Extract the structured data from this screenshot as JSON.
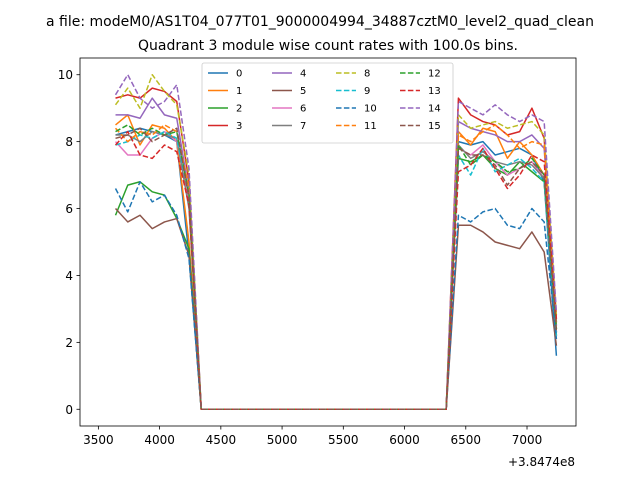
{
  "figure": {
    "suptitle": "a file: modeM0/AS1T04_077T01_9000004994_34887cztM0_level2_quad_clean",
    "title": "Quadrant 3 module wise count rates with 100.0s bins.",
    "offset_text": "+3.8474e8"
  },
  "chart_data": {
    "type": "line",
    "title": "Quadrant 3 module wise count rates with 100.0s bins.",
    "xlabel": "",
    "ylabel": "",
    "x_offset": 384740000,
    "xlim": [
      3350,
      7400
    ],
    "ylim": [
      -0.5,
      10.5
    ],
    "xticks": [
      3500,
      4000,
      4500,
      5000,
      5500,
      6000,
      6500,
      7000
    ],
    "yticks": [
      0,
      2,
      4,
      6,
      8,
      10
    ],
    "grid": false,
    "legend_placement": "upper-center",
    "legend_columns": 4,
    "x": [
      3640,
      3740,
      3840,
      3940,
      4040,
      4140,
      4240,
      4340,
      4440,
      4540,
      4640,
      4740,
      4840,
      4940,
      5040,
      5140,
      5240,
      5340,
      5440,
      5540,
      5640,
      5740,
      5840,
      5940,
      6040,
      6140,
      6240,
      6340,
      6440,
      6540,
      6640,
      6740,
      6840,
      6940,
      7040,
      7140,
      7240
    ],
    "series": [
      {
        "name": "0",
        "color": "#1f77b4",
        "dash": "solid",
        "values": [
          8.2,
          8.3,
          8.4,
          8.3,
          8.2,
          8.0,
          4.6,
          0,
          0,
          0,
          0,
          0,
          0,
          0,
          0,
          0,
          0,
          0,
          0,
          0,
          0,
          0,
          0,
          0,
          0,
          0,
          0,
          0,
          8.0,
          7.9,
          8.0,
          7.6,
          7.7,
          7.8,
          7.6,
          6.8,
          1.6
        ]
      },
      {
        "name": "1",
        "color": "#ff7f0e",
        "dash": "solid",
        "values": [
          8.5,
          8.8,
          7.9,
          8.5,
          8.4,
          8.0,
          5.0,
          0,
          0,
          0,
          0,
          0,
          0,
          0,
          0,
          0,
          0,
          0,
          0,
          0,
          0,
          0,
          0,
          0,
          0,
          0,
          0,
          0,
          8.3,
          7.9,
          8.4,
          8.3,
          7.5,
          8.0,
          7.6,
          7.0,
          2.4
        ]
      },
      {
        "name": "2",
        "color": "#2ca02c",
        "dash": "solid",
        "values": [
          5.8,
          6.7,
          6.8,
          6.5,
          6.4,
          5.7,
          4.8,
          0,
          0,
          0,
          0,
          0,
          0,
          0,
          0,
          0,
          0,
          0,
          0,
          0,
          0,
          0,
          0,
          0,
          0,
          0,
          0,
          0,
          7.5,
          7.4,
          7.6,
          7.2,
          7.0,
          7.4,
          7.1,
          6.8,
          2.3
        ]
      },
      {
        "name": "3",
        "color": "#d62728",
        "dash": "solid",
        "values": [
          9.3,
          9.4,
          9.3,
          9.6,
          9.5,
          9.2,
          6.8,
          0,
          0,
          0,
          0,
          0,
          0,
          0,
          0,
          0,
          0,
          0,
          0,
          0,
          0,
          0,
          0,
          0,
          0,
          0,
          0,
          0,
          9.3,
          8.8,
          8.6,
          8.5,
          8.2,
          8.3,
          9.0,
          8.1,
          2.6
        ]
      },
      {
        "name": "4",
        "color": "#9467bd",
        "dash": "solid",
        "values": [
          8.8,
          8.8,
          8.7,
          9.3,
          8.8,
          8.7,
          6.5,
          0,
          0,
          0,
          0,
          0,
          0,
          0,
          0,
          0,
          0,
          0,
          0,
          0,
          0,
          0,
          0,
          0,
          0,
          0,
          0,
          0,
          8.6,
          8.4,
          8.3,
          8.2,
          8.0,
          8.0,
          8.2,
          7.8,
          2.5
        ]
      },
      {
        "name": "5",
        "color": "#8c564b",
        "dash": "solid",
        "values": [
          6.0,
          5.6,
          5.8,
          5.4,
          5.6,
          5.7,
          4.6,
          0,
          0,
          0,
          0,
          0,
          0,
          0,
          0,
          0,
          0,
          0,
          0,
          0,
          0,
          0,
          0,
          0,
          0,
          0,
          0,
          0,
          5.5,
          5.5,
          5.3,
          5.0,
          4.9,
          4.8,
          5.3,
          4.7,
          1.9
        ]
      },
      {
        "name": "6",
        "color": "#e377c2",
        "dash": "solid",
        "values": [
          8.0,
          7.6,
          7.6,
          8.1,
          8.3,
          8.0,
          6.2,
          0,
          0,
          0,
          0,
          0,
          0,
          0,
          0,
          0,
          0,
          0,
          0,
          0,
          0,
          0,
          0,
          0,
          0,
          0,
          0,
          0,
          7.8,
          7.6,
          7.9,
          7.4,
          7.0,
          7.2,
          7.4,
          6.9,
          2.3
        ]
      },
      {
        "name": "7",
        "color": "#7f7f7f",
        "dash": "solid",
        "values": [
          8.2,
          8.2,
          8.0,
          8.3,
          8.2,
          8.1,
          6.0,
          0,
          0,
          0,
          0,
          0,
          0,
          0,
          0,
          0,
          0,
          0,
          0,
          0,
          0,
          0,
          0,
          0,
          0,
          0,
          0,
          0,
          7.9,
          7.5,
          7.7,
          7.4,
          7.3,
          7.4,
          7.3,
          6.9,
          2.2
        ]
      },
      {
        "name": "8",
        "color": "#bcbd22",
        "dash": "dashed",
        "values": [
          9.1,
          9.6,
          9.0,
          10.0,
          9.5,
          9.1,
          7.0,
          0,
          0,
          0,
          0,
          0,
          0,
          0,
          0,
          0,
          0,
          0,
          0,
          0,
          0,
          0,
          0,
          0,
          0,
          0,
          0,
          0,
          8.8,
          8.4,
          8.5,
          8.6,
          8.4,
          8.5,
          8.6,
          8.2,
          2.8
        ]
      },
      {
        "name": "9",
        "color": "#17becf",
        "dash": "dashed",
        "values": [
          7.9,
          8.0,
          8.2,
          8.1,
          8.3,
          8.1,
          6.4,
          0,
          0,
          0,
          0,
          0,
          0,
          0,
          0,
          0,
          0,
          0,
          0,
          0,
          0,
          0,
          0,
          0,
          0,
          0,
          0,
          0,
          7.6,
          7.0,
          7.8,
          7.1,
          7.3,
          7.5,
          7.2,
          6.8,
          2.2
        ]
      },
      {
        "name": "10",
        "color": "#1f77b4",
        "dash": "dashed",
        "values": [
          6.6,
          5.9,
          6.8,
          6.2,
          6.4,
          5.8,
          4.5,
          0,
          0,
          0,
          0,
          0,
          0,
          0,
          0,
          0,
          0,
          0,
          0,
          0,
          0,
          0,
          0,
          0,
          0,
          0,
          0,
          0,
          5.8,
          5.6,
          5.9,
          6.0,
          5.5,
          5.4,
          6.0,
          5.6,
          2.1
        ]
      },
      {
        "name": "11",
        "color": "#ff7f0e",
        "dash": "dashed",
        "values": [
          8.4,
          8.0,
          8.3,
          8.2,
          8.5,
          8.3,
          6.6,
          0,
          0,
          0,
          0,
          0,
          0,
          0,
          0,
          0,
          0,
          0,
          0,
          0,
          0,
          0,
          0,
          0,
          0,
          0,
          0,
          0,
          8.2,
          8.0,
          8.3,
          8.5,
          8.2,
          7.8,
          8.0,
          7.9,
          2.5
        ]
      },
      {
        "name": "12",
        "color": "#2ca02c",
        "dash": "dashed",
        "values": [
          8.3,
          8.5,
          8.2,
          8.4,
          8.2,
          8.3,
          6.4,
          0,
          0,
          0,
          0,
          0,
          0,
          0,
          0,
          0,
          0,
          0,
          0,
          0,
          0,
          0,
          0,
          0,
          0,
          0,
          0,
          0,
          7.9,
          7.3,
          7.6,
          7.4,
          7.1,
          7.2,
          7.5,
          7.0,
          2.4
        ]
      },
      {
        "name": "13",
        "color": "#d62728",
        "dash": "dashed",
        "values": [
          7.9,
          8.3,
          7.6,
          7.5,
          7.9,
          7.7,
          6.1,
          0,
          0,
          0,
          0,
          0,
          0,
          0,
          0,
          0,
          0,
          0,
          0,
          0,
          0,
          0,
          0,
          0,
          0,
          0,
          0,
          0,
          7.1,
          7.3,
          7.8,
          7.2,
          6.6,
          7.0,
          7.6,
          7.4,
          2.7
        ]
      },
      {
        "name": "14",
        "color": "#9467bd",
        "dash": "dashed",
        "values": [
          9.4,
          10.0,
          9.3,
          9.0,
          9.2,
          9.7,
          7.2,
          0,
          0,
          0,
          0,
          0,
          0,
          0,
          0,
          0,
          0,
          0,
          0,
          0,
          0,
          0,
          0,
          0,
          0,
          0,
          0,
          0,
          9.2,
          9.0,
          8.8,
          9.1,
          8.8,
          8.6,
          8.8,
          8.6,
          2.9
        ]
      },
      {
        "name": "15",
        "color": "#8c564b",
        "dash": "dashed",
        "values": [
          8.1,
          8.2,
          8.4,
          8.0,
          8.2,
          8.4,
          6.3,
          0,
          0,
          0,
          0,
          0,
          0,
          0,
          0,
          0,
          0,
          0,
          0,
          0,
          0,
          0,
          0,
          0,
          0,
          0,
          0,
          0,
          7.8,
          7.6,
          7.6,
          7.3,
          6.7,
          7.2,
          7.4,
          7.0,
          2.3
        ]
      }
    ]
  }
}
